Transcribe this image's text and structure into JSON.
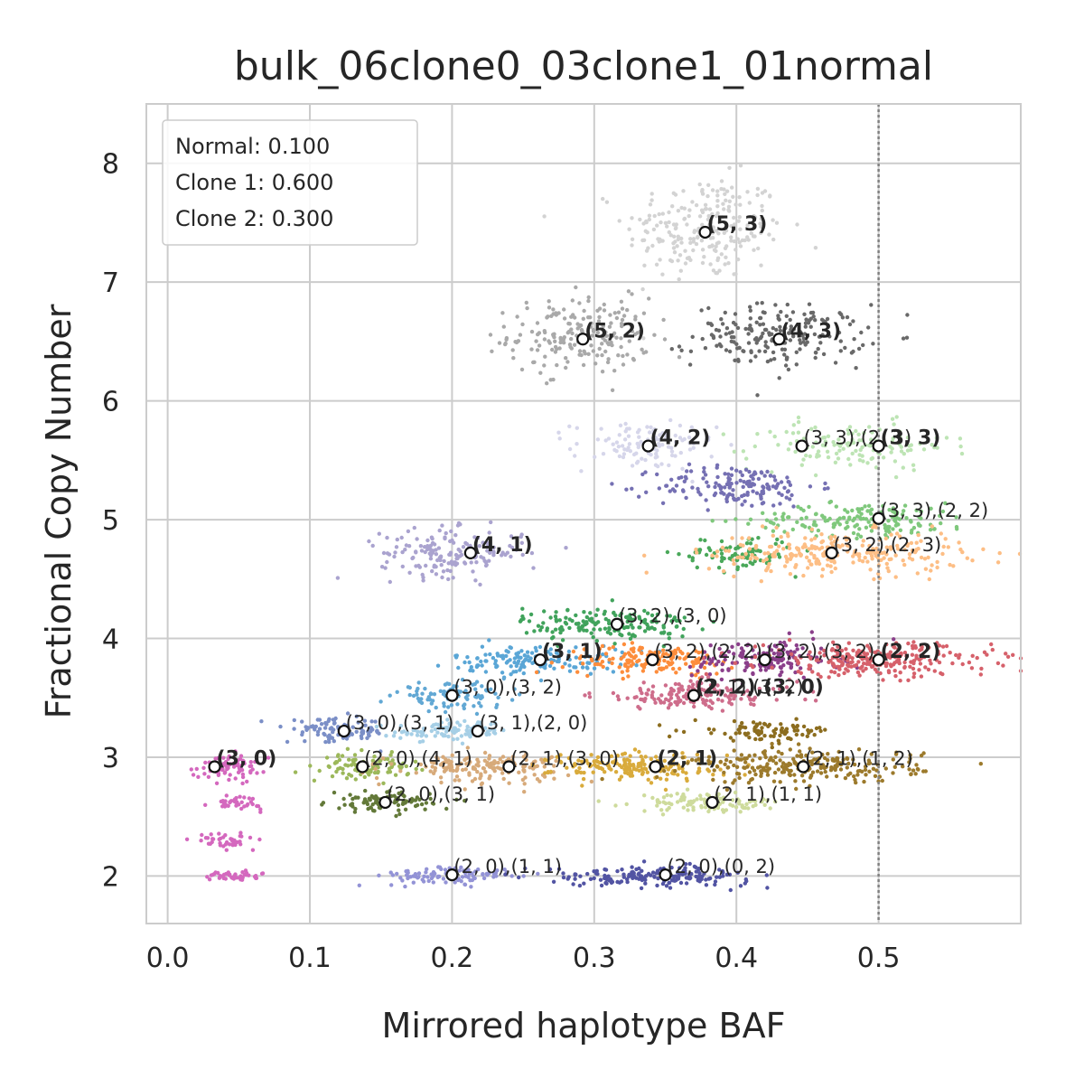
{
  "chart_data": {
    "type": "scatter",
    "title": "bulk_06clone0_03clone1_01normal",
    "xlabel": "Mirrored haplotype BAF",
    "ylabel": "Fractional Copy Number",
    "xlim": [
      -0.015,
      0.6
    ],
    "ylim": [
      1.6,
      8.5
    ],
    "x_ticks": [
      0.0,
      0.1,
      0.2,
      0.3,
      0.4,
      0.5
    ],
    "x_tick_labels": [
      "0.0",
      "0.1",
      "0.2",
      "0.3",
      "0.4",
      "0.5"
    ],
    "y_ticks": [
      2,
      3,
      4,
      5,
      6,
      7,
      8
    ],
    "y_tick_labels": [
      "2",
      "3",
      "4",
      "5",
      "6",
      "7",
      "8"
    ],
    "grid": true,
    "reference_line_x": 0.5,
    "legend": {
      "placement": "top-left",
      "entries": [
        "Normal: 0.100",
        "Clone 1: 0.600",
        "Clone 2: 0.300"
      ]
    },
    "clusters": [
      {
        "cx": 0.378,
        "cy": 7.45,
        "sx": 0.028,
        "sy": 0.22,
        "n": 240,
        "color": "#d3d3d3"
      },
      {
        "cx": 0.29,
        "cy": 6.55,
        "sx": 0.025,
        "sy": 0.16,
        "n": 200,
        "color": "#a9a9a9"
      },
      {
        "cx": 0.43,
        "cy": 6.55,
        "sx": 0.03,
        "sy": 0.13,
        "n": 200,
        "color": "#696969"
      },
      {
        "cx": 0.335,
        "cy": 5.62,
        "sx": 0.025,
        "sy": 0.1,
        "n": 110,
        "color": "#d6d6ea"
      },
      {
        "cx": 0.48,
        "cy": 5.62,
        "sx": 0.035,
        "sy": 0.1,
        "n": 140,
        "color": "#bde4b4"
      },
      {
        "cx": 0.4,
        "cy": 5.28,
        "sx": 0.028,
        "sy": 0.09,
        "n": 160,
        "color": "#7570b3"
      },
      {
        "cx": 0.49,
        "cy": 5.0,
        "sx": 0.04,
        "sy": 0.07,
        "n": 170,
        "color": "#7fc87c"
      },
      {
        "cx": 0.2,
        "cy": 4.72,
        "sx": 0.025,
        "sy": 0.1,
        "n": 170,
        "color": "#aaa3cf"
      },
      {
        "cx": 0.4,
        "cy": 4.72,
        "sx": 0.02,
        "sy": 0.07,
        "n": 90,
        "color": "#4aa85a"
      },
      {
        "cx": 0.47,
        "cy": 4.72,
        "sx": 0.045,
        "sy": 0.09,
        "n": 260,
        "color": "#fdbe85"
      },
      {
        "cx": 0.31,
        "cy": 4.12,
        "sx": 0.03,
        "sy": 0.07,
        "n": 170,
        "color": "#41a35c"
      },
      {
        "cx": 0.26,
        "cy": 3.82,
        "sx": 0.03,
        "sy": 0.06,
        "n": 150,
        "color": "#5aa6d6"
      },
      {
        "cx": 0.34,
        "cy": 3.82,
        "sx": 0.03,
        "sy": 0.06,
        "n": 160,
        "color": "#fd8d3c"
      },
      {
        "cx": 0.42,
        "cy": 3.82,
        "sx": 0.025,
        "sy": 0.08,
        "n": 150,
        "color": "#8a3f8a"
      },
      {
        "cx": 0.5,
        "cy": 3.82,
        "sx": 0.04,
        "sy": 0.07,
        "n": 260,
        "color": "#d6616b"
      },
      {
        "cx": 0.37,
        "cy": 3.52,
        "sx": 0.035,
        "sy": 0.06,
        "n": 160,
        "color": "#ce6d8b"
      },
      {
        "cx": 0.2,
        "cy": 3.52,
        "sx": 0.02,
        "sy": 0.05,
        "n": 100,
        "color": "#62a8d4"
      },
      {
        "cx": 0.12,
        "cy": 3.22,
        "sx": 0.018,
        "sy": 0.05,
        "n": 100,
        "color": "#7b8fc7"
      },
      {
        "cx": 0.2,
        "cy": 3.22,
        "sx": 0.02,
        "sy": 0.04,
        "n": 100,
        "color": "#a6cfe6"
      },
      {
        "cx": 0.42,
        "cy": 3.22,
        "sx": 0.025,
        "sy": 0.04,
        "n": 90,
        "color": "#8c6d1f"
      },
      {
        "cx": 0.14,
        "cy": 2.92,
        "sx": 0.015,
        "sy": 0.05,
        "n": 100,
        "color": "#9cb85a"
      },
      {
        "cx": 0.22,
        "cy": 2.92,
        "sx": 0.03,
        "sy": 0.06,
        "n": 160,
        "color": "#d7aa7a"
      },
      {
        "cx": 0.33,
        "cy": 2.92,
        "sx": 0.03,
        "sy": 0.06,
        "n": 180,
        "color": "#d9ab3c"
      },
      {
        "cx": 0.45,
        "cy": 2.92,
        "sx": 0.04,
        "sy": 0.07,
        "n": 240,
        "color": "#9c7a2c"
      },
      {
        "cx": 0.15,
        "cy": 2.62,
        "sx": 0.018,
        "sy": 0.04,
        "n": 100,
        "color": "#637939"
      },
      {
        "cx": 0.38,
        "cy": 2.62,
        "sx": 0.025,
        "sy": 0.04,
        "n": 110,
        "color": "#cedb9c"
      },
      {
        "cx": 0.2,
        "cy": 2.0,
        "sx": 0.025,
        "sy": 0.04,
        "n": 100,
        "color": "#9393d6"
      },
      {
        "cx": 0.34,
        "cy": 2.0,
        "sx": 0.035,
        "sy": 0.04,
        "n": 180,
        "color": "#5254a3"
      },
      {
        "cx": 0.045,
        "cy": 2.92,
        "sx": 0.012,
        "sy": 0.05,
        "n": 80,
        "color": "#d468be"
      },
      {
        "cx": 0.05,
        "cy": 2.62,
        "sx": 0.008,
        "sy": 0.03,
        "n": 40,
        "color": "#d468be"
      },
      {
        "cx": 0.04,
        "cy": 2.3,
        "sx": 0.01,
        "sy": 0.03,
        "n": 40,
        "color": "#d468be"
      },
      {
        "cx": 0.045,
        "cy": 2.0,
        "sx": 0.01,
        "sy": 0.02,
        "n": 40,
        "color": "#d468be"
      }
    ],
    "annotations": [
      {
        "x": 0.378,
        "y": 7.42,
        "text": "(5, 3)",
        "bold": true
      },
      {
        "x": 0.292,
        "y": 6.52,
        "text": "(5, 2)",
        "bold": true
      },
      {
        "x": 0.43,
        "y": 6.52,
        "text": "(4, 3)",
        "bold": true
      },
      {
        "x": 0.338,
        "y": 5.62,
        "text": "(4, 2)",
        "bold": true
      },
      {
        "x": 0.446,
        "y": 5.62,
        "text": "(3, 3),(2, 3)",
        "bold": false
      },
      {
        "x": 0.5,
        "y": 5.62,
        "text": "(3, 3)",
        "bold": true
      },
      {
        "x": 0.5,
        "y": 5.01,
        "text": "(3, 3),(2, 2)",
        "bold": false
      },
      {
        "x": 0.213,
        "y": 4.72,
        "text": "(4, 1)",
        "bold": true
      },
      {
        "x": 0.467,
        "y": 4.72,
        "text": "(3, 2),(2, 3)",
        "bold": false
      },
      {
        "x": 0.316,
        "y": 4.12,
        "text": "(3, 2),(3, 0)",
        "bold": false
      },
      {
        "x": 0.262,
        "y": 3.82,
        "text": "(3, 1)",
        "bold": true
      },
      {
        "x": 0.341,
        "y": 3.82,
        "text": "(3, 2),(2, 2)",
        "bold": false
      },
      {
        "x": 0.42,
        "y": 3.82,
        "text": "(3, 2),(3, 2)",
        "bold": false
      },
      {
        "x": 0.5,
        "y": 3.82,
        "text": "(2, 2)",
        "bold": true
      },
      {
        "x": 0.37,
        "y": 3.52,
        "text": "(2, 1),(3, 2)",
        "bold": false
      },
      {
        "x": 0.37,
        "y": 3.52,
        "text": "(2, 2),(3, 0)",
        "bold": true
      },
      {
        "x": 0.2,
        "y": 3.52,
        "text": "(3, 0),(3, 2)",
        "bold": false
      },
      {
        "x": 0.124,
        "y": 3.22,
        "text": "(3, 0),(3, 1)",
        "bold": false
      },
      {
        "x": 0.218,
        "y": 3.22,
        "text": "(3, 1),(2, 0)",
        "bold": false
      },
      {
        "x": 0.033,
        "y": 2.92,
        "text": "(3, 0)",
        "bold": true
      },
      {
        "x": 0.137,
        "y": 2.92,
        "text": "(2, 0),(4, 1)",
        "bold": false
      },
      {
        "x": 0.24,
        "y": 2.92,
        "text": "(2, 1),(3, 0)",
        "bold": false
      },
      {
        "x": 0.343,
        "y": 2.92,
        "text": "(2, 1)",
        "bold": true
      },
      {
        "x": 0.447,
        "y": 2.92,
        "text": "(2, 1),(1, 2)",
        "bold": false
      },
      {
        "x": 0.153,
        "y": 2.62,
        "text": "(2, 0),(3, 1)",
        "bold": false
      },
      {
        "x": 0.383,
        "y": 2.62,
        "text": "(2, 1),(1, 1)",
        "bold": false
      },
      {
        "x": 0.2,
        "y": 2.01,
        "text": "(2, 0),(1, 1)",
        "bold": false
      },
      {
        "x": 0.35,
        "y": 2.01,
        "text": "(2, 0),(0, 2)",
        "bold": false
      }
    ]
  }
}
